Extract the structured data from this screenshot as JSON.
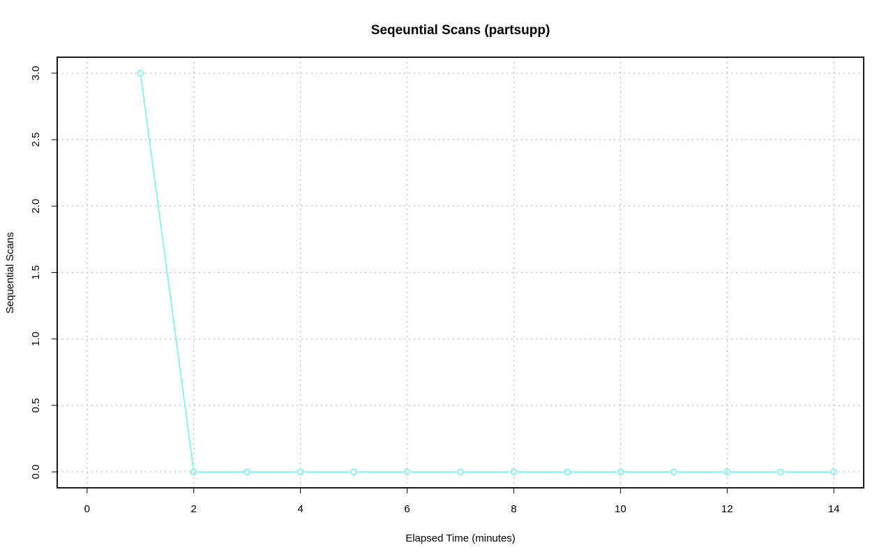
{
  "chart_data": {
    "type": "line",
    "title": "Seqeuntial Scans (partsupp)",
    "xlabel": "Elapsed Time (minutes)",
    "ylabel": "Sequential Scans",
    "x": [
      1,
      2,
      3,
      4,
      5,
      6,
      7,
      8,
      9,
      10,
      11,
      12,
      13,
      14
    ],
    "series": [
      {
        "values": [
          3,
          0,
          0,
          0,
          0,
          0,
          0,
          0,
          0,
          0,
          0,
          0,
          0,
          0
        ],
        "color": "#6EF5F5"
      }
    ],
    "xlim": [
      -0.56,
      14.56
    ],
    "ylim": [
      -0.12,
      3.12
    ],
    "xticks": [
      0,
      2,
      4,
      6,
      8,
      10,
      12,
      14
    ],
    "xtick_labels": [
      "0",
      "2",
      "4",
      "6",
      "8",
      "10",
      "12",
      "14"
    ],
    "yticks": [
      0,
      0.5,
      1,
      1.5,
      2,
      2.5,
      3
    ],
    "ytick_labels": [
      "0.0",
      "0.5",
      "1.0",
      "1.5",
      "2.0",
      "2.5",
      "3.0"
    ],
    "grid": true,
    "markers": "open-circle"
  }
}
